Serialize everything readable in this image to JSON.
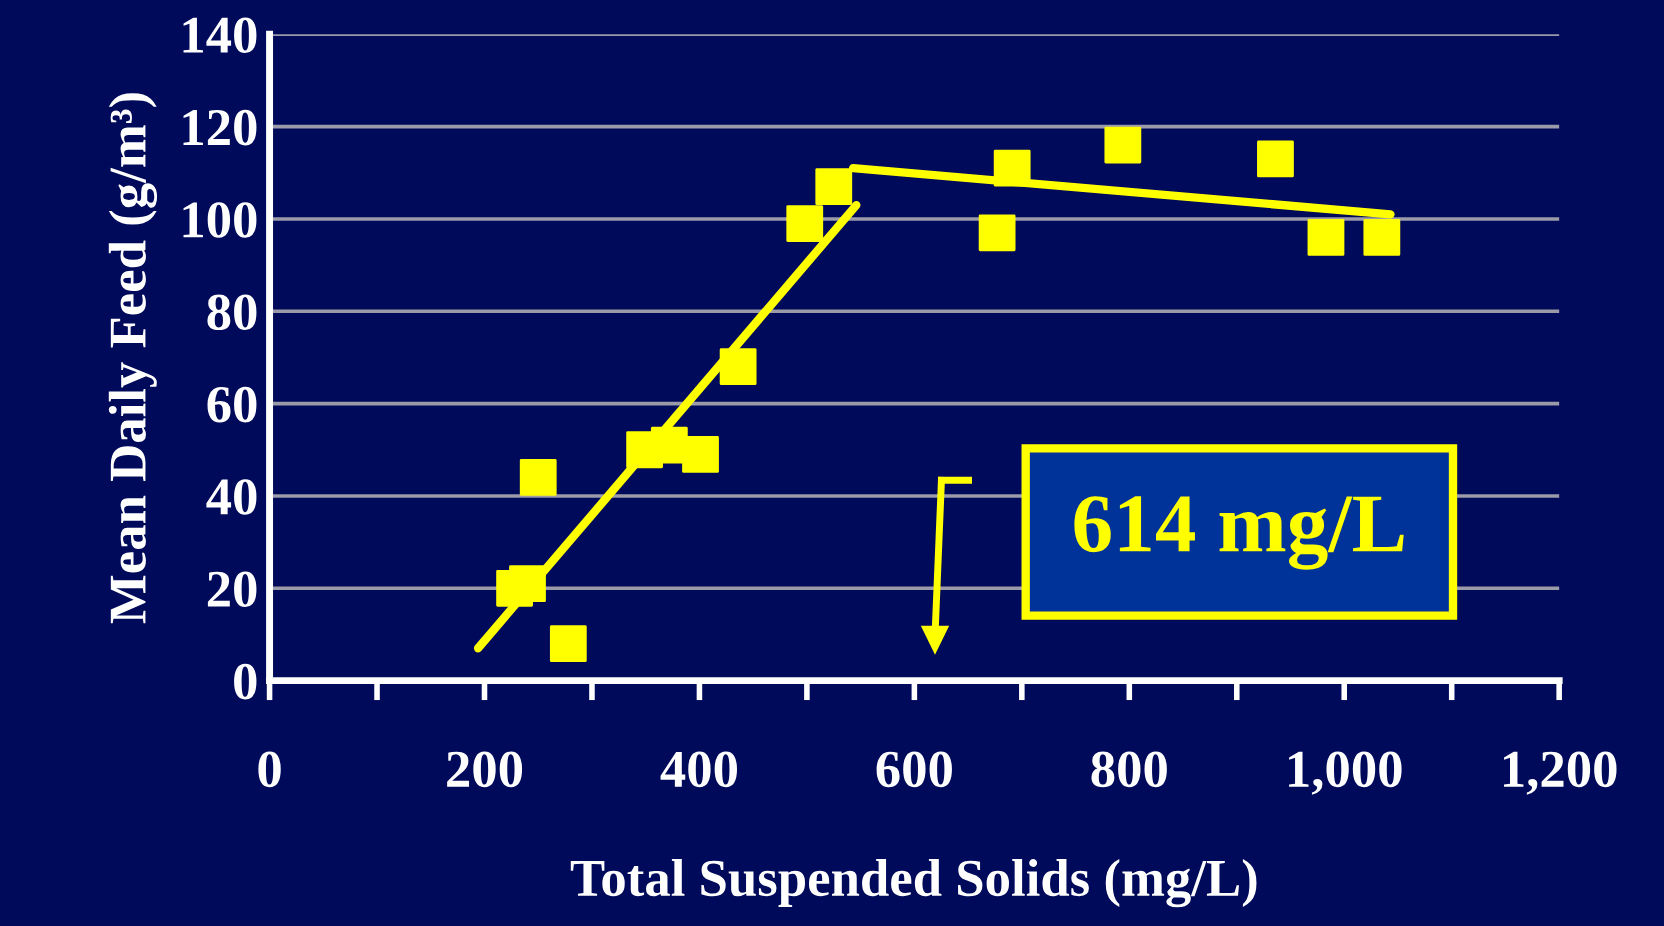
{
  "chart_data": {
    "type": "scatter",
    "xlabel": "Total Suspended Solids (mg/L)",
    "ylabel": "Mean Daily Feed (g/m³)",
    "xlim": [
      0,
      1200
    ],
    "ylim": [
      0,
      140
    ],
    "xticks": [
      0,
      {
        "value": 100,
        "label": null
      },
      200,
      {
        "value": 300,
        "label": null
      },
      400,
      {
        "value": 500,
        "label": null
      },
      600,
      {
        "value": 700,
        "label": null
      },
      800,
      {
        "value": 900,
        "label": null
      },
      {
        "value": 1000,
        "label": "1,000"
      },
      {
        "value": 1100,
        "label": null
      },
      {
        "value": 1200,
        "label": "1,200"
      }
    ],
    "yticks": [
      0,
      20,
      40,
      60,
      80,
      100,
      120,
      140
    ],
    "grid": "y",
    "legend": false,
    "marker": "square",
    "series": [
      {
        "color": "#ffff00",
        "x": [
          228,
          240,
          250,
          278,
          349,
          372,
          401,
          436,
          498,
          525,
          677,
          691,
          794,
          936,
          983,
          1035
        ],
        "values": [
          20,
          21,
          44,
          8,
          50,
          51,
          49,
          68,
          99,
          107,
          97,
          111,
          116,
          113,
          96,
          96
        ]
      },
      {
        "type": "line",
        "color": "#ffff00",
        "marker": "none",
        "x": [
          194,
          546
        ],
        "values": [
          7,
          103
        ]
      },
      {
        "type": "line",
        "color": "#ffff00",
        "marker": "none",
        "x": [
          543,
          1043
        ],
        "values": [
          111,
          101
        ]
      }
    ],
    "annotations": [
      "614 mg/L"
    ]
  }
}
